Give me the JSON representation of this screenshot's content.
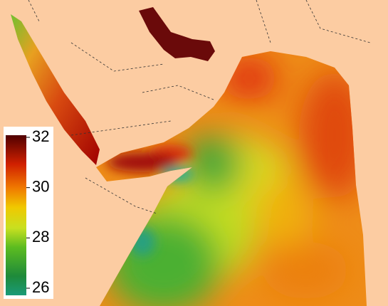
{
  "colorbar": {
    "range": [
      26,
      32
    ],
    "ticks": [
      26,
      28,
      30,
      32
    ]
  }
}
